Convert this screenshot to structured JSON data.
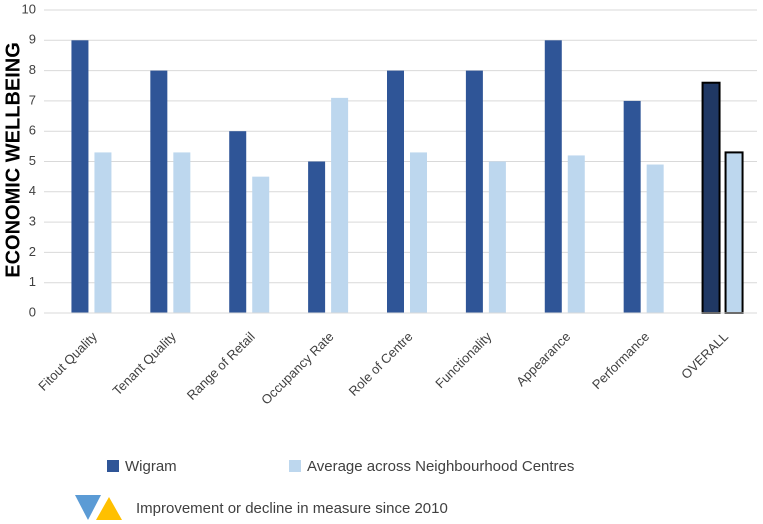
{
  "chart_data": {
    "type": "bar",
    "y_label": "ECONOMIC WELLBEING",
    "categories": [
      "Fitout Quality",
      "Tenant Quality",
      "Range of Retail",
      "Occupancy Rate",
      "Role of Centre",
      "Functionality",
      "Appearance",
      "Performance",
      "OVERALL"
    ],
    "series": [
      {
        "name": "Wigram",
        "color": "#2f5597",
        "values": [
          9,
          8,
          6,
          5,
          8,
          8,
          9,
          7,
          7.6
        ]
      },
      {
        "name": "Average across Neighbourhood Centres",
        "color": "#bdd7ee",
        "values": [
          5.3,
          5.3,
          4.5,
          7.1,
          5.3,
          5.0,
          5.2,
          4.9,
          5.3
        ]
      }
    ],
    "ylim": [
      0,
      10
    ],
    "yticks": [
      0,
      1,
      2,
      3,
      4,
      5,
      6,
      7,
      8,
      9,
      10
    ],
    "grid": true,
    "note": "Improvement or decline in measure since 2010"
  }
}
